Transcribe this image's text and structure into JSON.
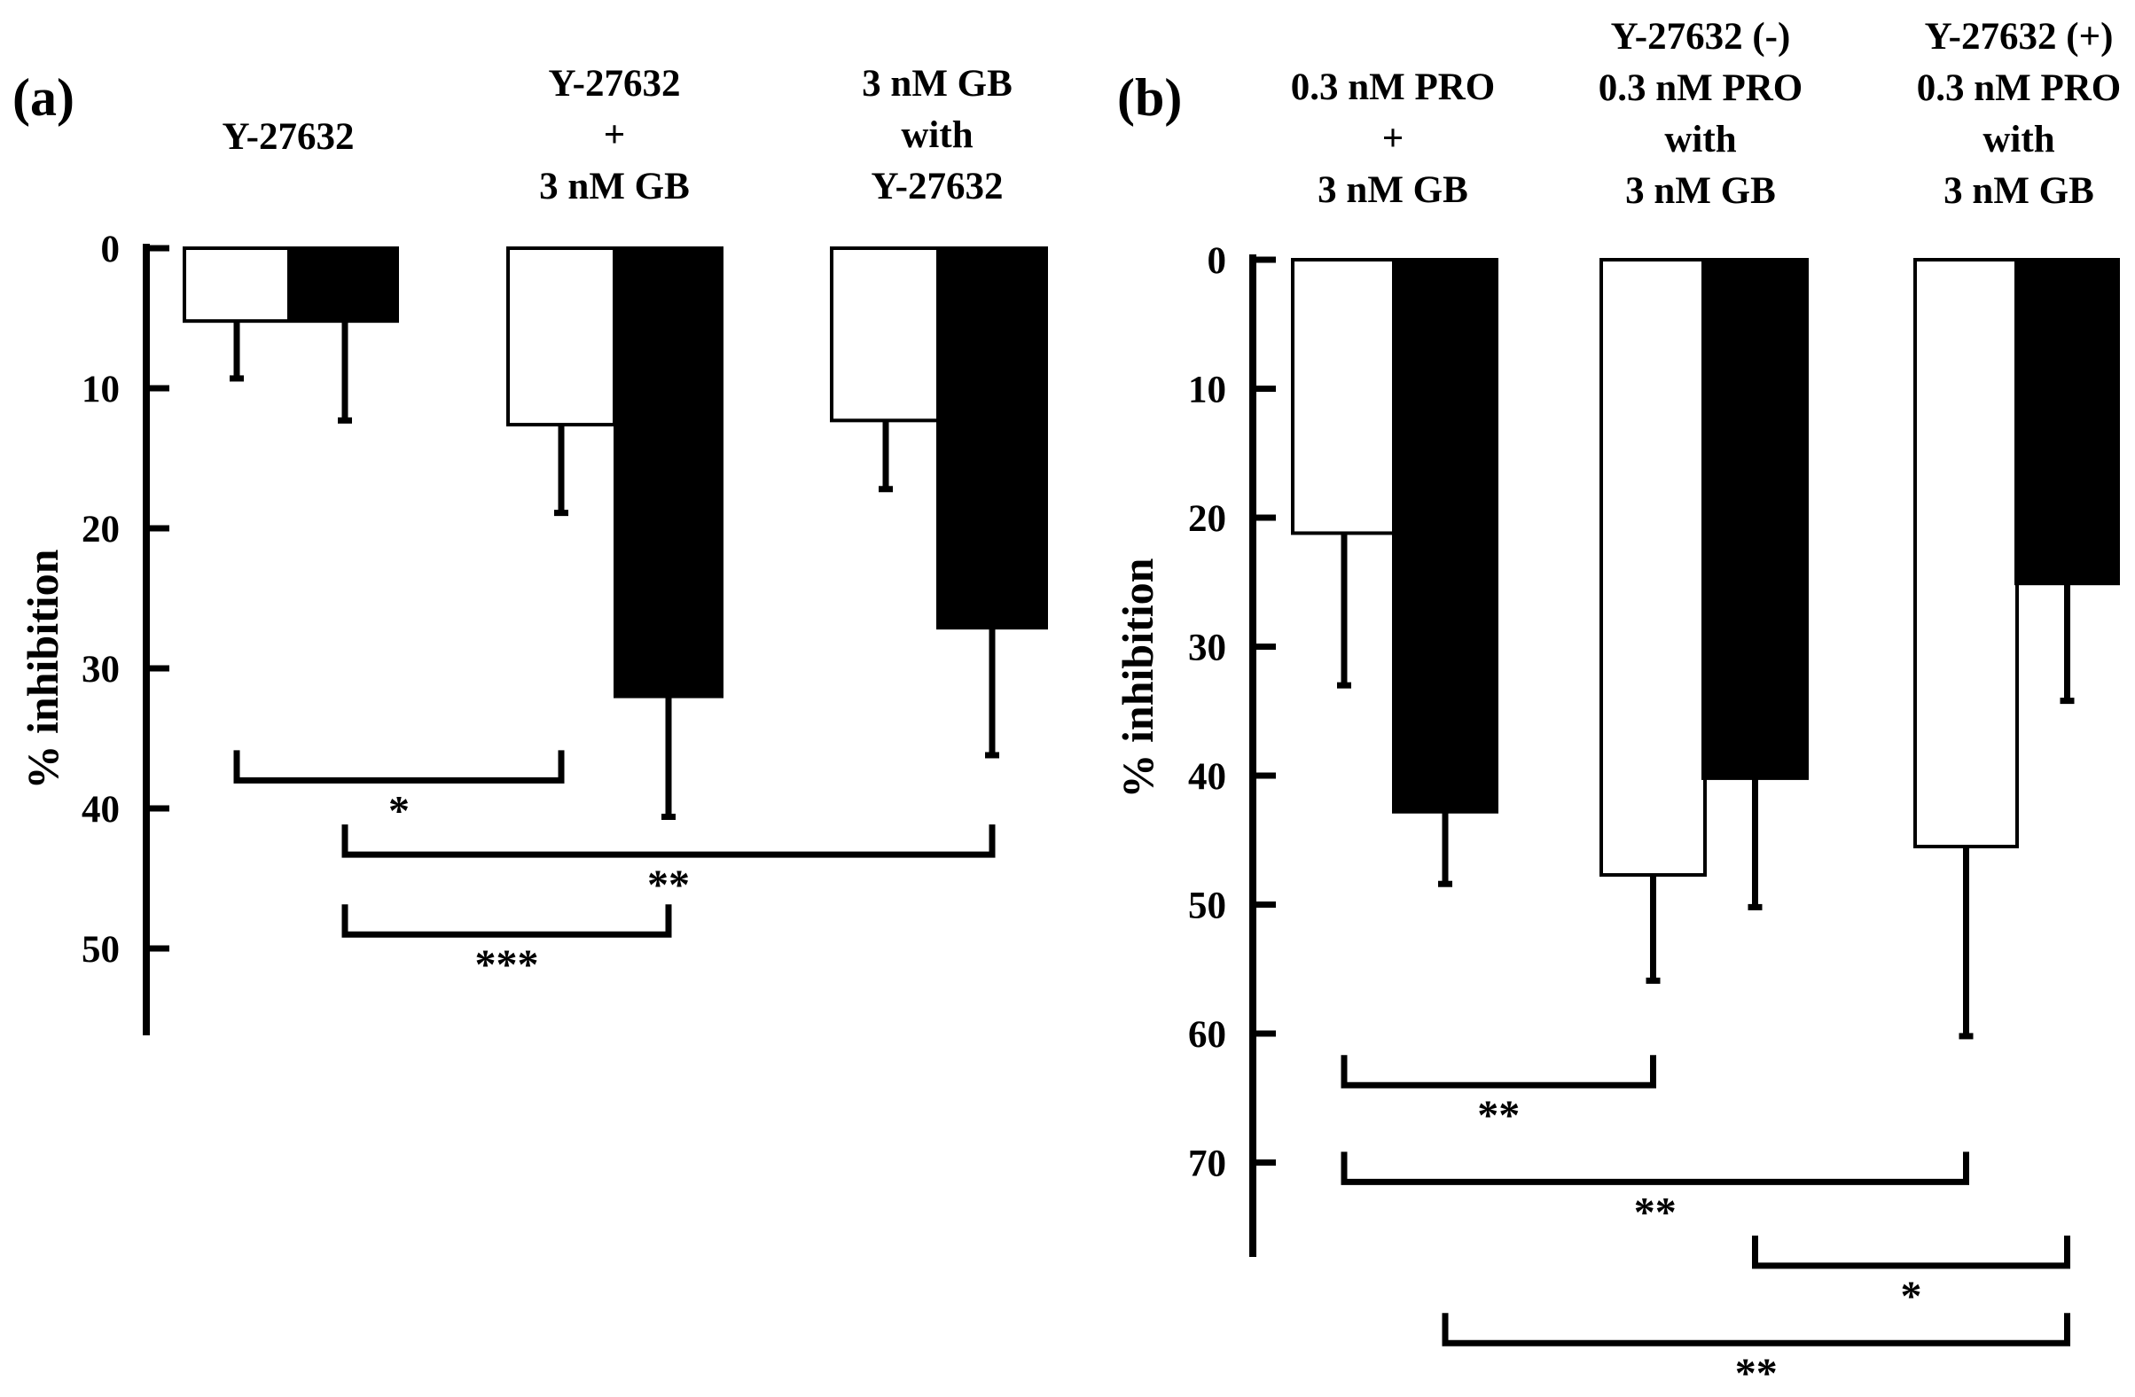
{
  "chart_data": [
    {
      "type": "bar",
      "panel_label": "(a)",
      "ylabel": "% inhibition",
      "ylim": [
        0,
        55
      ],
      "y_inverted": true,
      "yticks": [
        0,
        10,
        20,
        30,
        40,
        50
      ],
      "series": [
        {
          "name": "open bars",
          "color": "#ffffff",
          "values": [
            5.2,
            12.6,
            12.3
          ],
          "errors": [
            4.1,
            6.3,
            4.9
          ]
        },
        {
          "name": "filled bars",
          "color": "#000000",
          "values": [
            5.2,
            32.0,
            27.1
          ],
          "errors": [
            7.1,
            8.6,
            9.1
          ]
        }
      ],
      "groups": [
        {
          "lines": [
            "Y-27632"
          ]
        },
        {
          "lines": [
            "Y-27632",
            "+",
            "3 nM GB"
          ]
        },
        {
          "lines": [
            "3 nM GB",
            "with",
            "Y-27632"
          ]
        }
      ],
      "significance": [
        {
          "label": "*",
          "from": "g0-open",
          "to": "g1-open",
          "y": 38.0
        },
        {
          "label": "**",
          "from": "g0-filled",
          "to": "g2-filled",
          "y": 43.3
        },
        {
          "label": "***",
          "from": "g0-filled",
          "to": "g1-filled",
          "y": 49.0
        }
      ]
    },
    {
      "type": "bar",
      "panel_label": "(b)",
      "ylabel": "% inhibition",
      "ylim": [
        0,
        77
      ],
      "y_inverted": true,
      "yticks": [
        0,
        10,
        20,
        30,
        40,
        50,
        60,
        70
      ],
      "series": [
        {
          "name": "open bars",
          "color": "#ffffff",
          "values": [
            21.2,
            47.7,
            45.5
          ],
          "errors": [
            11.8,
            8.2,
            14.7
          ]
        },
        {
          "name": "filled bars",
          "color": "#000000",
          "values": [
            42.8,
            40.2,
            25.1
          ],
          "errors": [
            5.6,
            10.0,
            9.1
          ]
        }
      ],
      "groups": [
        {
          "lines": [
            "0.3 nM PRO",
            "+",
            "3 nM GB"
          ]
        },
        {
          "lines": [
            "Y-27632 (-)",
            "0.3 nM PRO",
            "with",
            "3 nM GB"
          ]
        },
        {
          "lines": [
            "Y-27632 (+)",
            "0.3 nM PRO",
            "with",
            "3 nM GB"
          ]
        }
      ],
      "significance": [
        {
          "label": "**",
          "from": "g0-open",
          "to": "g1-open",
          "y": 64.0
        },
        {
          "label": "**",
          "from": "g0-open",
          "to": "g2-open",
          "y": 71.5
        },
        {
          "label": "*",
          "from": "g1-filled",
          "to": "g2-filled",
          "y": 78.0
        },
        {
          "label": "**",
          "from": "g0-filled",
          "to": "g2-filled",
          "y": 84.0
        }
      ]
    }
  ]
}
